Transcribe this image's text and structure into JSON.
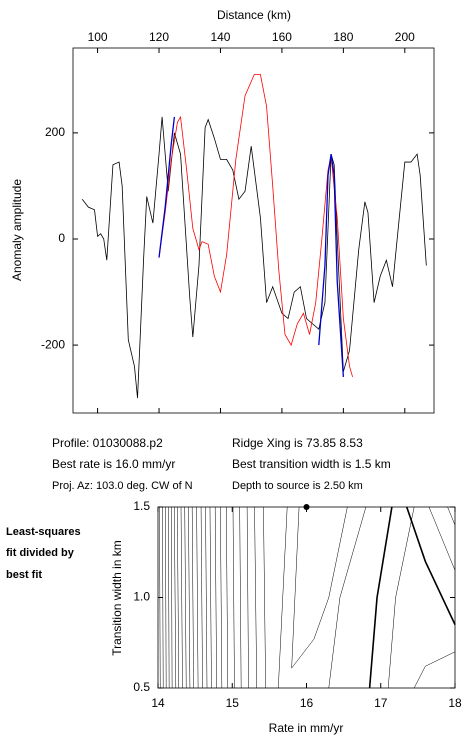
{
  "chart_data": [
    {
      "type": "line",
      "xlabel": "Distance (km)",
      "ylabel": "Anomaly amplitude",
      "xlim": [
        92,
        209.5
      ],
      "xticks": [
        100,
        120,
        140,
        160,
        180,
        200
      ],
      "ylim": [
        -328,
        360
      ],
      "yticks": [
        -200,
        0,
        200
      ],
      "series": [
        {
          "color": "#000000",
          "x": [
            95,
            97,
            99,
            100,
            101,
            102,
            103,
            105,
            107,
            108,
            110,
            112,
            113,
            115,
            116,
            118,
            120,
            121,
            123,
            125,
            127,
            130,
            131,
            133,
            135,
            136,
            138,
            140,
            142,
            144,
            146,
            148,
            150,
            151,
            153,
            155,
            157,
            160,
            162,
            164,
            166,
            168,
            170,
            172,
            174,
            176,
            177,
            178,
            180,
            182,
            185,
            187,
            188,
            190,
            192,
            194,
            196,
            197,
            200,
            202,
            204,
            205,
            207
          ],
          "values": [
            75,
            60,
            55,
            5,
            10,
            0,
            -40,
            140,
            145,
            100,
            -190,
            -240,
            -300,
            -35,
            80,
            30,
            160,
            230,
            90,
            200,
            160,
            -110,
            -185,
            -50,
            210,
            225,
            190,
            150,
            150,
            130,
            75,
            90,
            175,
            130,
            40,
            -120,
            -90,
            -140,
            -150,
            -100,
            -90,
            -150,
            -160,
            -170,
            -120,
            160,
            140,
            0,
            -250,
            -210,
            -20,
            70,
            50,
            -120,
            -70,
            -40,
            -90,
            -30,
            145,
            145,
            160,
            120,
            -50
          ]
        },
        {
          "color": "#ff0000",
          "x": [
            120,
            122,
            124,
            126,
            127,
            129,
            131,
            133,
            134,
            136,
            138,
            140,
            142,
            145,
            148,
            151,
            153,
            155,
            157,
            159,
            161,
            163,
            165,
            167,
            169,
            171,
            173,
            175,
            176,
            178,
            180,
            182,
            183
          ],
          "values": [
            -35,
            50,
            150,
            220,
            230,
            130,
            20,
            -20,
            -5,
            -10,
            -70,
            -100,
            -30,
            150,
            270,
            310,
            310,
            250,
            100,
            -60,
            -180,
            -200,
            -160,
            -140,
            -180,
            -120,
            0,
            130,
            155,
            40,
            -150,
            -240,
            -260
          ]
        },
        {
          "color": "#0000cc",
          "x": [
            120,
            122,
            124,
            125
          ],
          "values": [
            -35,
            60,
            180,
            230
          ]
        },
        {
          "color": "#0000cc",
          "x": [
            172,
            174,
            175,
            176,
            177,
            178,
            180
          ],
          "values": [
            -200,
            -50,
            120,
            160,
            120,
            -80,
            -260
          ]
        }
      ]
    },
    {
      "type": "contour",
      "xlabel": "Rate in mm/yr",
      "ylabel": "Transition width in km",
      "xlim": [
        14,
        18
      ],
      "xticks": [
        14,
        15,
        16,
        17,
        18
      ],
      "ylim": [
        0.5,
        1.5
      ],
      "yticks": [
        {
          "value": 0.5,
          "label": "0.5"
        },
        {
          "value": 1,
          "label": "1.0"
        },
        {
          "value": 1.5,
          "label": "1.5"
        }
      ],
      "best": {
        "x": 16,
        "y": 1.5
      },
      "contours": [
        {
          "x": [
            14.03,
            14.02
          ],
          "y": [
            0.5,
            1.5
          ]
        },
        {
          "x": [
            14.07,
            14.06
          ],
          "y": [
            0.5,
            1.5
          ]
        },
        {
          "x": [
            14.11,
            14.1
          ],
          "y": [
            0.5,
            1.5
          ]
        },
        {
          "x": [
            14.15,
            14.14
          ],
          "y": [
            0.5,
            1.5
          ]
        },
        {
          "x": [
            14.19,
            14.18
          ],
          "y": [
            0.5,
            1.5
          ]
        },
        {
          "x": [
            14.24,
            14.22
          ],
          "y": [
            0.5,
            1.5
          ]
        },
        {
          "x": [
            14.28,
            14.26
          ],
          "y": [
            0.5,
            1.5
          ]
        },
        {
          "x": [
            14.33,
            14.31
          ],
          "y": [
            0.5,
            1.5
          ]
        },
        {
          "x": [
            14.38,
            14.36
          ],
          "y": [
            0.5,
            1.5
          ]
        },
        {
          "x": [
            14.43,
            14.41
          ],
          "y": [
            0.5,
            1.5
          ]
        },
        {
          "x": [
            14.48,
            14.46
          ],
          "y": [
            0.5,
            1.5
          ]
        },
        {
          "x": [
            14.54,
            14.52
          ],
          "y": [
            0.5,
            1.5
          ]
        },
        {
          "x": [
            14.6,
            14.58
          ],
          "y": [
            0.5,
            1.5
          ]
        },
        {
          "x": [
            14.66,
            14.64
          ],
          "y": [
            0.5,
            1.5
          ]
        },
        {
          "x": [
            14.72,
            14.7
          ],
          "y": [
            0.5,
            1.5
          ]
        },
        {
          "x": [
            14.79,
            14.77
          ],
          "y": [
            0.5,
            1.5
          ]
        },
        {
          "x": [
            14.86,
            14.84
          ],
          "y": [
            0.5,
            1.5
          ]
        },
        {
          "x": [
            14.94,
            14.92
          ],
          "y": [
            0.5,
            1.5
          ]
        },
        {
          "x": [
            15.03,
            15.01
          ],
          "y": [
            0.5,
            1.5
          ]
        },
        {
          "x": [
            15.12,
            15.1
          ],
          "y": [
            0.5,
            1.5
          ]
        },
        {
          "x": [
            15.22,
            15.2
          ],
          "y": [
            0.5,
            1.5
          ]
        },
        {
          "x": [
            15.33,
            15.3
          ],
          "y": [
            0.5,
            1.5
          ]
        },
        {
          "x": [
            15.45,
            15.42
          ],
          "y": [
            0.5,
            1.5
          ]
        },
        {
          "x": [
            15.62,
            15.68,
            15.74
          ],
          "y": [
            0.5,
            1.0,
            1.5
          ]
        },
        {
          "x": [
            15.9,
            15.8,
            16.1,
            16.3,
            16.55
          ],
          "y": [
            1.5,
            0.61,
            0.77,
            1.0,
            1.5
          ]
        },
        {
          "x": [
            16.3,
            16.45,
            16.8
          ],
          "y": [
            0.5,
            1.0,
            1.5
          ]
        },
        {
          "x": [
            16.85,
            16.95,
            17.15
          ],
          "y": [
            0.5,
            1.0,
            1.5
          ],
          "bold": true
        },
        {
          "x": [
            17.1,
            17.2,
            17.45
          ],
          "y": [
            0.5,
            1.0,
            1.5
          ]
        },
        {
          "x": [
            17.35,
            17.6,
            18
          ],
          "y": [
            1.5,
            1.2,
            0.85
          ],
          "bold": true
        },
        {
          "x": [
            17.65,
            18
          ],
          "y": [
            1.5,
            1.15
          ]
        },
        {
          "x": [
            17.9,
            18
          ],
          "y": [
            1.5,
            1.4
          ]
        },
        {
          "x": [
            17.45,
            17.6,
            18
          ],
          "y": [
            0.5,
            0.62,
            0.7
          ]
        }
      ]
    }
  ],
  "info": {
    "profile": "Profile: 01030088.p2",
    "rate": "Best rate is 16.0 mm/yr",
    "azimuth": "Proj. Az: 103.0 deg. CW of N",
    "ridge": "Ridge Xing is 73.85 8.53",
    "width": "Best transition width is 1.5 km",
    "depth": "Depth to source is   2.50 km"
  },
  "side_note": [
    "Least-squares",
    "fit divided by",
    "best fit"
  ]
}
